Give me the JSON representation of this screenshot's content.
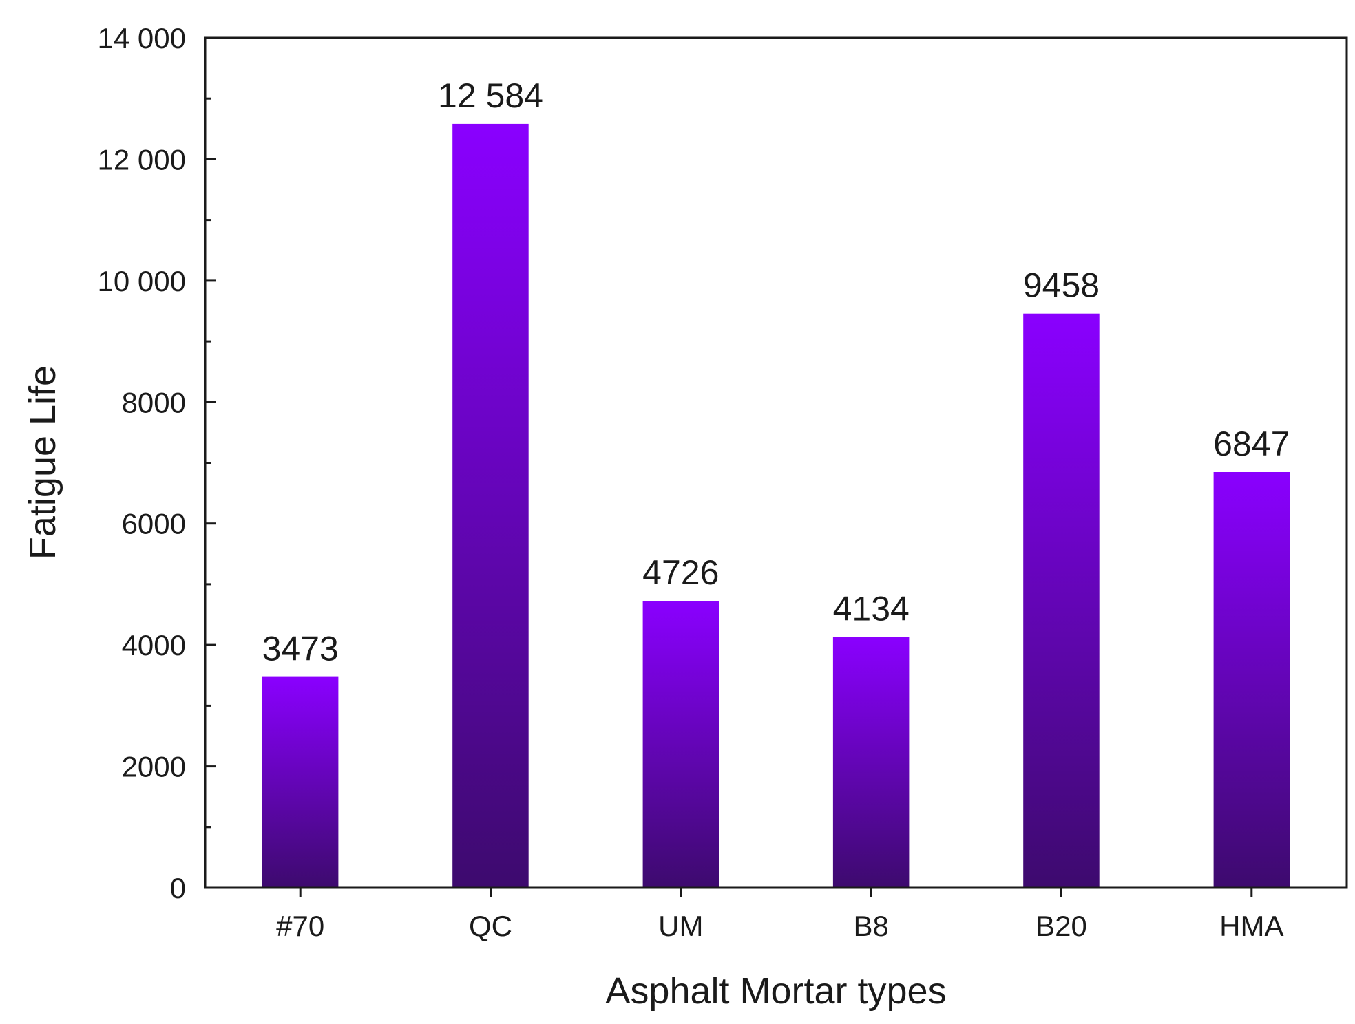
{
  "chart_data": {
    "type": "bar",
    "title": "",
    "xlabel": "Asphalt Mortar types",
    "ylabel": "Fatigue Life",
    "categories": [
      "#70",
      "QC",
      "UM",
      "B8",
      "B20",
      "HMA"
    ],
    "values": [
      3473,
      12584,
      4726,
      4134,
      9458,
      6847
    ],
    "data_labels": [
      "3473",
      "12 584",
      "4726",
      "4134",
      "9458",
      "6847"
    ],
    "ylim": [
      0,
      14000
    ],
    "yticks": [
      0,
      2000,
      4000,
      6000,
      8000,
      10000,
      12000,
      14000
    ],
    "ytick_labels": [
      "0",
      "2000",
      "4000",
      "6000",
      "8000",
      "10 000",
      "12 000",
      "14 000"
    ],
    "grid": false,
    "legend": "none",
    "bar_gradient": {
      "top": "#8a00ff",
      "bottom": "#3d0a6e"
    }
  }
}
